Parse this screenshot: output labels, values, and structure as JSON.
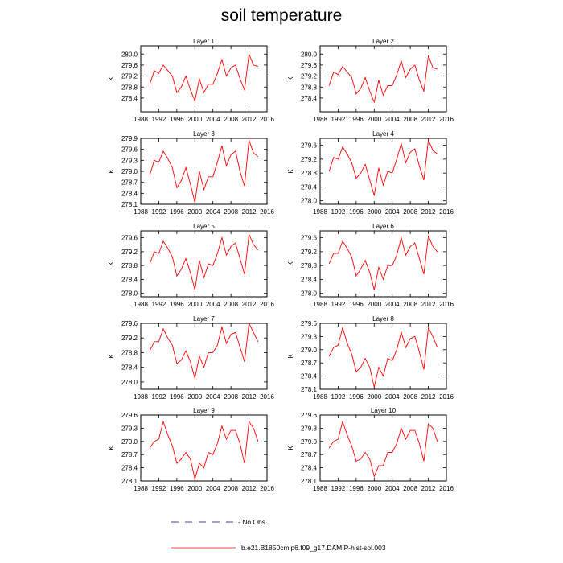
{
  "title": "soil temperature",
  "legend": {
    "no_obs_label": "No Obs",
    "model_label": "b.e21.B1850cmip6.f09_g17.DAMIP-hist-sol.003",
    "model_color": "#ff0000",
    "no_obs_color": "#0000aa"
  },
  "chart_data": [
    {
      "type": "line",
      "title": "Layer 1",
      "ylabel": "K",
      "xlim": [
        1988,
        2016
      ],
      "xticks": [
        1988,
        1992,
        1996,
        2000,
        2004,
        2008,
        2012,
        2016
      ],
      "ylim": [
        277.9,
        280.3
      ],
      "yticks": [
        "278.4",
        "278.8",
        "279.2",
        "279.6",
        "280.0"
      ],
      "series": [
        {
          "name": "b.e21.B1850cmip6.f09_g17.DAMIP-hist-sol.003",
          "x": [
            1990,
            1991,
            1992,
            1993,
            1994,
            1995,
            1996,
            1997,
            1998,
            1999,
            2000,
            2001,
            2002,
            2003,
            2004,
            2005,
            2006,
            2007,
            2008,
            2009,
            2010,
            2011,
            2012,
            2013,
            2014
          ],
          "y": [
            278.9,
            279.4,
            279.3,
            279.6,
            279.4,
            279.2,
            278.6,
            278.8,
            279.2,
            278.7,
            278.3,
            279.1,
            278.6,
            278.9,
            278.9,
            279.3,
            279.8,
            279.2,
            279.5,
            279.6,
            279.1,
            278.7,
            280.0,
            279.6,
            279.55
          ]
        }
      ]
    },
    {
      "type": "line",
      "title": "Layer 2",
      "ylabel": "K",
      "xlim": [
        1988,
        2016
      ],
      "xticks": [
        1988,
        1992,
        1996,
        2000,
        2004,
        2008,
        2012,
        2016
      ],
      "ylim": [
        277.9,
        280.3
      ],
      "yticks": [
        "278.4",
        "278.8",
        "279.2",
        "279.6",
        "280.0"
      ],
      "series": [
        {
          "name": "b.e21.B1850cmip6.f09_g17.DAMIP-hist-sol.003",
          "x": [
            1990,
            1991,
            1992,
            1993,
            1994,
            1995,
            1996,
            1997,
            1998,
            1999,
            2000,
            2001,
            2002,
            2003,
            2004,
            2005,
            2006,
            2007,
            2008,
            2009,
            2010,
            2011,
            2012,
            2013,
            2014
          ],
          "y": [
            278.85,
            279.35,
            279.25,
            279.55,
            279.35,
            279.15,
            278.55,
            278.75,
            279.15,
            278.65,
            278.25,
            279.05,
            278.5,
            278.85,
            278.85,
            279.25,
            279.75,
            279.15,
            279.45,
            279.6,
            279.05,
            278.65,
            279.95,
            279.5,
            279.45
          ]
        }
      ]
    },
    {
      "type": "line",
      "title": "Layer 3",
      "ylabel": "K",
      "xlim": [
        1988,
        2016
      ],
      "xticks": [
        1988,
        1992,
        1996,
        2000,
        2004,
        2008,
        2012,
        2016
      ],
      "ylim": [
        278.1,
        279.9
      ],
      "yticks": [
        "278.1",
        "278.4",
        "278.7",
        "279.0",
        "279.3",
        "279.6",
        "279.9"
      ],
      "series": [
        {
          "name": "b.e21.B1850cmip6.f09_g17.DAMIP-hist-sol.003",
          "x": [
            1990,
            1991,
            1992,
            1993,
            1994,
            1995,
            1996,
            1997,
            1998,
            1999,
            2000,
            2001,
            2002,
            2003,
            2004,
            2005,
            2006,
            2007,
            2008,
            2009,
            2010,
            2011,
            2012,
            2013,
            2014
          ],
          "y": [
            278.9,
            279.3,
            279.25,
            279.55,
            279.35,
            279.1,
            278.55,
            278.75,
            279.1,
            278.65,
            278.15,
            279.0,
            278.5,
            278.85,
            278.85,
            279.25,
            279.7,
            279.15,
            279.45,
            279.55,
            279.0,
            278.6,
            279.85,
            279.5,
            279.4
          ]
        }
      ]
    },
    {
      "type": "line",
      "title": "Layer 4",
      "ylabel": "K",
      "xlim": [
        1988,
        2016
      ],
      "xticks": [
        1988,
        1992,
        1996,
        2000,
        2004,
        2008,
        2012,
        2016
      ],
      "ylim": [
        277.9,
        279.8
      ],
      "yticks": [
        "278.0",
        "278.4",
        "278.8",
        "279.2",
        "279.6"
      ],
      "series": [
        {
          "name": "b.e21.B1850cmip6.f09_g17.DAMIP-hist-sol.003",
          "x": [
            1990,
            1991,
            1992,
            1993,
            1994,
            1995,
            1996,
            1997,
            1998,
            1999,
            2000,
            2001,
            2002,
            2003,
            2004,
            2005,
            2006,
            2007,
            2008,
            2009,
            2010,
            2011,
            2012,
            2013,
            2014
          ],
          "y": [
            278.85,
            279.25,
            279.2,
            279.55,
            279.35,
            279.1,
            278.65,
            278.8,
            279.05,
            278.6,
            278.15,
            278.95,
            278.45,
            278.85,
            278.8,
            279.2,
            279.65,
            279.1,
            279.4,
            279.5,
            279.0,
            278.6,
            279.75,
            279.45,
            279.35
          ]
        }
      ]
    },
    {
      "type": "line",
      "title": "Layer 5",
      "ylabel": "K",
      "xlim": [
        1988,
        2016
      ],
      "xticks": [
        1988,
        1992,
        1996,
        2000,
        2004,
        2008,
        2012,
        2016
      ],
      "ylim": [
        277.9,
        279.8
      ],
      "yticks": [
        "278.0",
        "278.4",
        "278.8",
        "279.2",
        "279.6"
      ],
      "series": [
        {
          "name": "b.e21.B1850cmip6.f09_g17.DAMIP-hist-sol.003",
          "x": [
            1990,
            1991,
            1992,
            1993,
            1994,
            1995,
            1996,
            1997,
            1998,
            1999,
            2000,
            2001,
            2002,
            2003,
            2004,
            2005,
            2006,
            2007,
            2008,
            2009,
            2010,
            2011,
            2012,
            2013,
            2014
          ],
          "y": [
            278.85,
            279.2,
            279.15,
            279.5,
            279.3,
            279.05,
            278.5,
            278.7,
            279.0,
            278.6,
            278.1,
            278.95,
            278.45,
            278.85,
            278.8,
            279.15,
            279.6,
            279.1,
            279.35,
            279.45,
            279.0,
            278.55,
            279.7,
            279.4,
            279.25
          ]
        }
      ]
    },
    {
      "type": "line",
      "title": "Layer 6",
      "ylabel": "K",
      "xlim": [
        1988,
        2016
      ],
      "xticks": [
        1988,
        1992,
        1996,
        2000,
        2004,
        2008,
        2012,
        2016
      ],
      "ylim": [
        277.9,
        279.8
      ],
      "yticks": [
        "278.0",
        "278.4",
        "278.8",
        "279.2",
        "279.6"
      ],
      "series": [
        {
          "name": "b.e21.B1850cmip6.f09_g17.DAMIP-hist-sol.003",
          "x": [
            1990,
            1991,
            1992,
            1993,
            1994,
            1995,
            1996,
            1997,
            1998,
            1999,
            2000,
            2001,
            2002,
            2003,
            2004,
            2005,
            2006,
            2007,
            2008,
            2009,
            2010,
            2011,
            2012,
            2013,
            2014
          ],
          "y": [
            278.85,
            279.15,
            279.15,
            279.5,
            279.3,
            279.05,
            278.5,
            278.7,
            278.95,
            278.6,
            278.1,
            278.75,
            278.4,
            278.8,
            278.8,
            279.1,
            279.6,
            279.1,
            279.35,
            279.45,
            279.0,
            278.55,
            279.65,
            279.35,
            279.2
          ]
        }
      ]
    },
    {
      "type": "line",
      "title": "Layer 7",
      "ylabel": "K",
      "xlim": [
        1988,
        2016
      ],
      "xticks": [
        1988,
        1992,
        1996,
        2000,
        2004,
        2008,
        2012,
        2016
      ],
      "ylim": [
        277.8,
        279.6
      ],
      "yticks": [
        "278.0",
        "278.4",
        "278.8",
        "279.2",
        "279.6"
      ],
      "series": [
        {
          "name": "b.e21.B1850cmip6.f09_g17.DAMIP-hist-sol.003",
          "x": [
            1990,
            1991,
            1992,
            1993,
            1994,
            1995,
            1996,
            1997,
            1998,
            1999,
            2000,
            2001,
            2002,
            2003,
            2004,
            2005,
            2006,
            2007,
            2008,
            2009,
            2010,
            2011,
            2012,
            2013,
            2014
          ],
          "y": [
            278.85,
            279.1,
            279.1,
            279.45,
            279.2,
            279.0,
            278.5,
            278.6,
            278.85,
            278.55,
            278.1,
            278.7,
            278.4,
            278.8,
            278.8,
            279.0,
            279.5,
            279.05,
            279.3,
            279.35,
            278.95,
            278.55,
            279.6,
            279.35,
            279.1
          ]
        }
      ]
    },
    {
      "type": "line",
      "title": "Layer 8",
      "ylabel": "K",
      "xlim": [
        1988,
        2016
      ],
      "xticks": [
        1988,
        1992,
        1996,
        2000,
        2004,
        2008,
        2012,
        2016
      ],
      "ylim": [
        278.1,
        279.6
      ],
      "yticks": [
        "278.1",
        "278.4",
        "278.7",
        "279.0",
        "279.3",
        "279.6"
      ],
      "series": [
        {
          "name": "b.e21.B1850cmip6.f09_g17.DAMIP-hist-sol.003",
          "x": [
            1990,
            1991,
            1992,
            1993,
            1994,
            1995,
            1996,
            1997,
            1998,
            1999,
            2000,
            2001,
            2002,
            2003,
            2004,
            2005,
            2006,
            2007,
            2008,
            2009,
            2010,
            2011,
            2012,
            2013,
            2014
          ],
          "y": [
            278.85,
            279.05,
            279.1,
            279.5,
            279.15,
            278.9,
            278.5,
            278.6,
            278.8,
            278.6,
            278.15,
            278.6,
            278.4,
            278.8,
            278.75,
            279.0,
            279.4,
            279.05,
            279.25,
            279.3,
            278.95,
            278.55,
            279.5,
            279.3,
            279.05
          ]
        }
      ]
    },
    {
      "type": "line",
      "title": "Layer 9",
      "ylabel": "K",
      "xlim": [
        1988,
        2016
      ],
      "xticks": [
        1988,
        1992,
        1996,
        2000,
        2004,
        2008,
        2012,
        2016
      ],
      "ylim": [
        278.1,
        279.6
      ],
      "yticks": [
        "278.1",
        "278.4",
        "278.7",
        "279.0",
        "279.3",
        "279.6"
      ],
      "series": [
        {
          "name": "b.e21.B1850cmip6.f09_g17.DAMIP-hist-sol.003",
          "x": [
            1990,
            1991,
            1992,
            1993,
            1994,
            1995,
            1996,
            1997,
            1998,
            1999,
            2000,
            2001,
            2002,
            2003,
            2004,
            2005,
            2006,
            2007,
            2008,
            2009,
            2010,
            2011,
            2012,
            2013,
            2014
          ],
          "y": [
            278.85,
            279.0,
            279.05,
            279.45,
            279.15,
            278.9,
            278.5,
            278.6,
            278.75,
            278.6,
            278.15,
            278.5,
            278.4,
            278.75,
            278.7,
            278.95,
            279.35,
            279.05,
            279.25,
            279.25,
            278.95,
            278.5,
            279.45,
            279.3,
            279.0
          ]
        }
      ]
    },
    {
      "type": "line",
      "title": "Layer 10",
      "ylabel": "K",
      "xlim": [
        1988,
        2016
      ],
      "xticks": [
        1988,
        1992,
        1996,
        2000,
        2004,
        2008,
        2012,
        2016
      ],
      "ylim": [
        278.1,
        279.6
      ],
      "yticks": [
        "278.1",
        "278.4",
        "278.7",
        "279.0",
        "279.3",
        "279.6"
      ],
      "series": [
        {
          "name": "b.e21.B1850cmip6.f09_g17.DAMIP-hist-sol.003",
          "x": [
            1990,
            1991,
            1992,
            1993,
            1994,
            1995,
            1996,
            1997,
            1998,
            1999,
            2000,
            2001,
            2002,
            2003,
            2004,
            2005,
            2006,
            2007,
            2008,
            2009,
            2010,
            2011,
            2012,
            2013,
            2014
          ],
          "y": [
            278.85,
            279.0,
            279.05,
            279.45,
            279.15,
            278.9,
            278.55,
            278.6,
            278.75,
            278.6,
            278.2,
            278.45,
            278.45,
            278.75,
            278.75,
            278.95,
            279.3,
            279.05,
            279.25,
            279.25,
            278.95,
            278.55,
            279.4,
            279.3,
            279.0
          ]
        }
      ]
    }
  ]
}
